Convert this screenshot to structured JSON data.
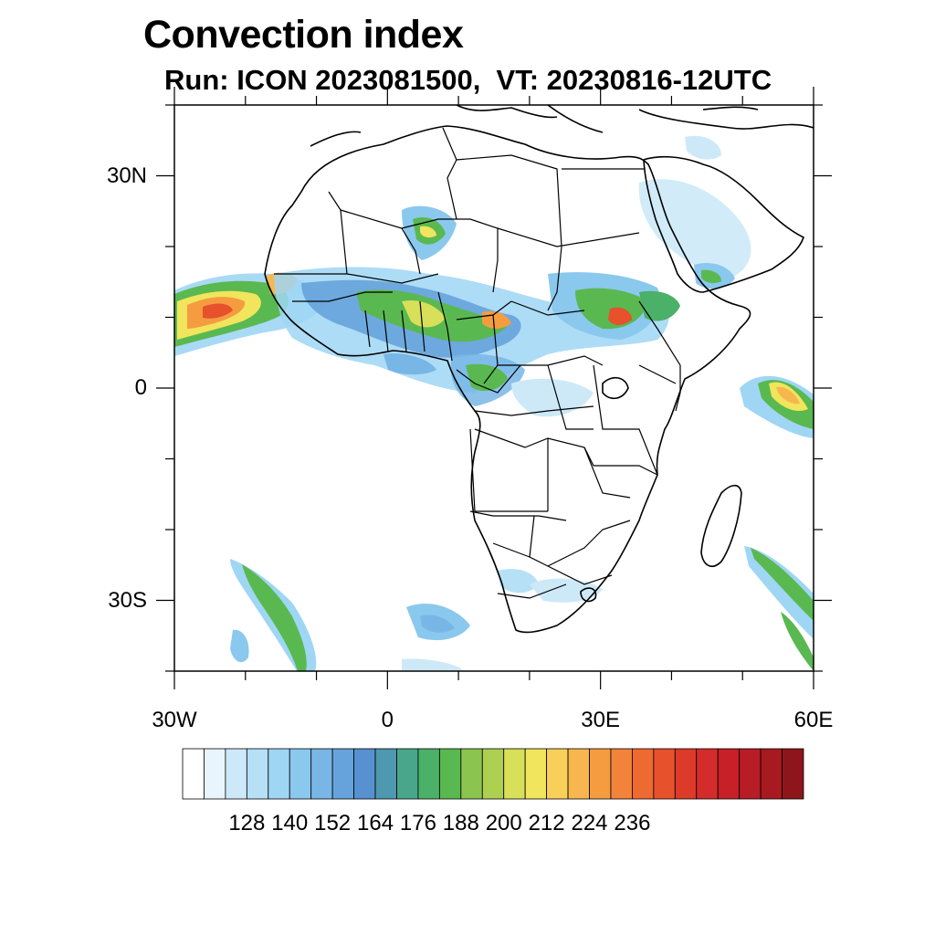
{
  "title": "Convection index",
  "subtitle": "Run: ICON 2023081500,  VT: 20230816-12UTC",
  "map": {
    "extent": {
      "lon": [
        -30,
        60
      ],
      "lat": [
        -40,
        40
      ]
    },
    "lat_ticks": [
      {
        "value": 30,
        "label": "30N"
      },
      {
        "value": 0,
        "label": "0"
      },
      {
        "value": -30,
        "label": "30S"
      }
    ],
    "lon_ticks": [
      {
        "value": -30,
        "label": "30W"
      },
      {
        "value": 0,
        "label": "0"
      },
      {
        "value": 30,
        "label": "30E"
      },
      {
        "value": 60,
        "label": "60E"
      }
    ]
  },
  "colorbar": {
    "labels": [
      "128",
      "140",
      "152",
      "164",
      "176",
      "188",
      "200",
      "212",
      "224",
      "236"
    ],
    "colors": [
      "#ffffff",
      "#e8f5fc",
      "#cde9f8",
      "#b6e0f6",
      "#9fd6f4",
      "#8ac8ee",
      "#78b6e6",
      "#66a3dc",
      "#5791cf",
      "#4e98b0",
      "#4aa68a",
      "#4bb068",
      "#5ab850",
      "#8cc450",
      "#aed050",
      "#d8df58",
      "#f0e55c",
      "#f8cf58",
      "#f7b74e",
      "#f59c40",
      "#f2833a",
      "#ef6a31",
      "#e7512c",
      "#de3a29",
      "#d42c2a",
      "#c72027",
      "#b81c24",
      "#a61a20",
      "#8e161b"
    ]
  }
}
